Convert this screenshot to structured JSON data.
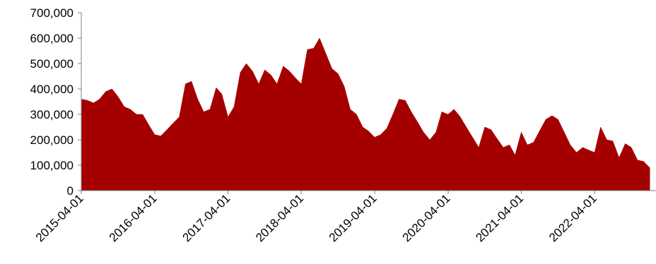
{
  "chart_data": {
    "type": "area",
    "title": "",
    "xlabel": "",
    "ylabel": "",
    "ylim": [
      0,
      700000
    ],
    "y_ticks": [
      0,
      100000,
      200000,
      300000,
      400000,
      500000,
      600000,
      700000
    ],
    "y_tick_labels": [
      "0",
      "100,000",
      "200,000",
      "300,000",
      "400,000",
      "500,000",
      "600,000",
      "700,000"
    ],
    "x_range": [
      "2015-04-01",
      "2023-02-01"
    ],
    "x_tick_labels": [
      "2015-04-01",
      "2016-04-01",
      "2017-04-01",
      "2018-04-01",
      "2019-04-01",
      "2020-04-01",
      "2021-04-01",
      "2022-04-01"
    ],
    "grid": false,
    "legend": "none",
    "colors": {
      "fill": "#a50000",
      "axis": "#808080"
    },
    "series": [
      {
        "x": [
          "2015-04-01",
          "2015-05-01",
          "2015-06-01",
          "2015-07-01",
          "2015-08-01",
          "2015-09-01",
          "2015-10-01",
          "2015-11-01",
          "2015-12-01",
          "2016-01-01",
          "2016-02-01",
          "2016-03-01",
          "2016-04-01",
          "2016-05-01",
          "2016-06-01",
          "2016-07-01",
          "2016-08-01",
          "2016-09-01",
          "2016-10-01",
          "2016-11-01",
          "2016-12-01",
          "2017-01-01",
          "2017-02-01",
          "2017-03-01",
          "2017-04-01",
          "2017-05-01",
          "2017-06-01",
          "2017-07-01",
          "2017-08-01",
          "2017-09-01",
          "2017-10-01",
          "2017-11-01",
          "2017-12-01",
          "2018-01-01",
          "2018-02-01",
          "2018-03-01",
          "2018-04-01",
          "2018-05-01",
          "2018-06-01",
          "2018-07-01",
          "2018-08-01",
          "2018-09-01",
          "2018-10-01",
          "2018-11-01",
          "2018-12-01",
          "2019-01-01",
          "2019-02-01",
          "2019-03-01",
          "2019-04-01",
          "2019-05-01",
          "2019-06-01",
          "2019-07-01",
          "2019-08-01",
          "2019-09-01",
          "2019-10-01",
          "2019-11-01",
          "2019-12-01",
          "2020-01-01",
          "2020-02-01",
          "2020-03-01",
          "2020-04-01",
          "2020-05-01",
          "2020-06-01",
          "2020-07-01",
          "2020-08-01",
          "2020-09-01",
          "2020-10-01",
          "2020-11-01",
          "2020-12-01",
          "2021-01-01",
          "2021-02-01",
          "2021-03-01",
          "2021-04-01",
          "2021-05-01",
          "2021-06-01",
          "2021-07-01",
          "2021-08-01",
          "2021-09-01",
          "2021-10-01",
          "2021-11-01",
          "2021-12-01",
          "2022-01-01",
          "2022-02-01",
          "2022-03-01",
          "2022-04-01",
          "2022-05-01",
          "2022-06-01",
          "2022-07-01",
          "2022-08-01",
          "2022-09-01",
          "2022-10-01",
          "2022-11-01",
          "2022-12-01",
          "2023-01-01"
        ],
        "values": [
          360000,
          355000,
          345000,
          360000,
          390000,
          400000,
          370000,
          330000,
          320000,
          300000,
          300000,
          260000,
          220000,
          215000,
          240000,
          265000,
          290000,
          420000,
          430000,
          360000,
          310000,
          320000,
          405000,
          380000,
          290000,
          330000,
          465000,
          500000,
          470000,
          420000,
          475000,
          455000,
          420000,
          490000,
          470000,
          445000,
          420000,
          555000,
          560000,
          600000,
          540000,
          480000,
          460000,
          410000,
          320000,
          300000,
          250000,
          235000,
          210000,
          220000,
          245000,
          300000,
          360000,
          355000,
          310000,
          270000,
          230000,
          200000,
          230000,
          310000,
          300000,
          320000,
          290000,
          250000,
          210000,
          170000,
          250000,
          240000,
          205000,
          170000,
          180000,
          140000,
          230000,
          180000,
          190000,
          235000,
          280000,
          295000,
          280000,
          230000,
          180000,
          150000,
          170000,
          160000,
          150000,
          250000,
          200000,
          195000,
          130000,
          185000,
          170000,
          120000,
          115000,
          90000
        ]
      }
    ]
  }
}
